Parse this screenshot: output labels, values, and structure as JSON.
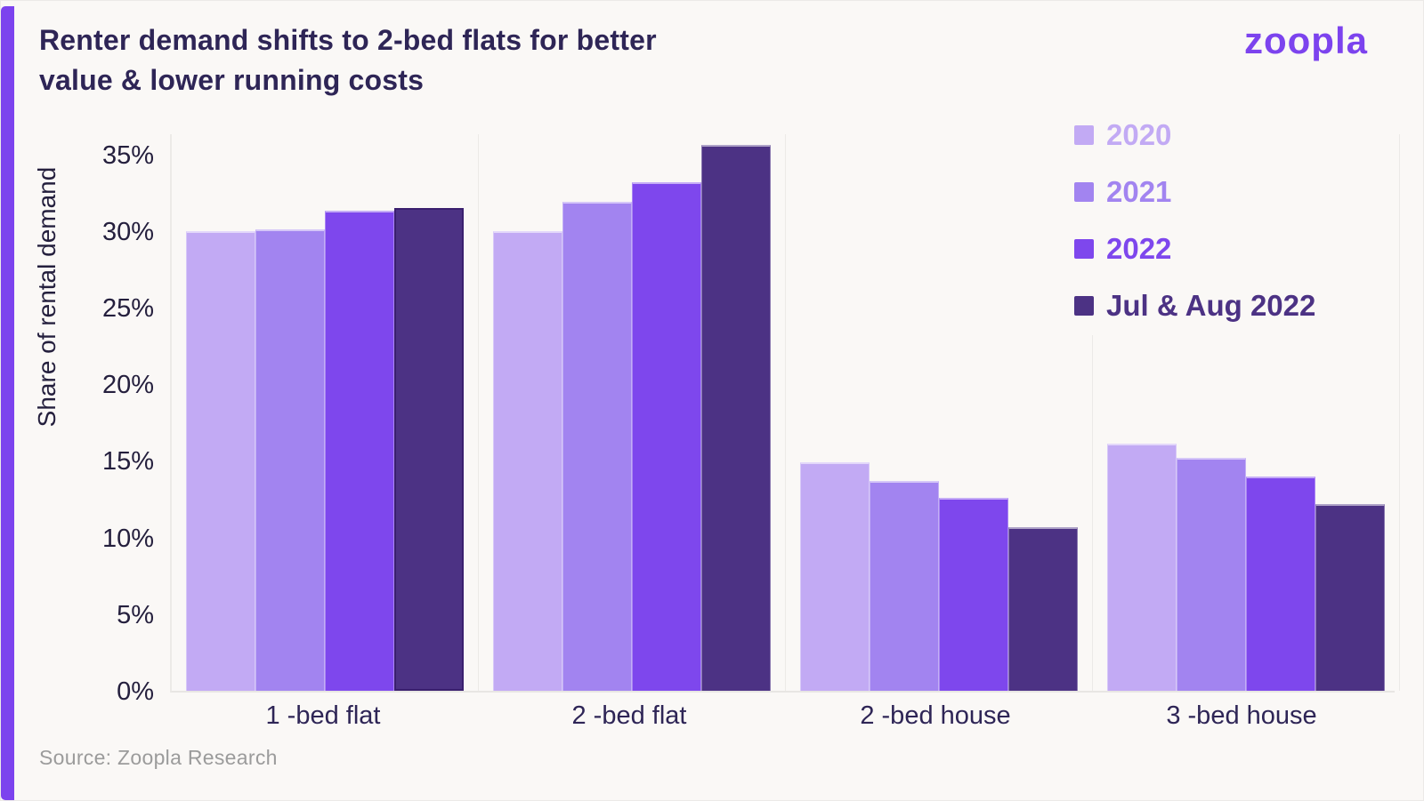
{
  "page": {
    "background_color": "#FAF8F6",
    "accent_color": "#7C43EE"
  },
  "header": {
    "title_lines": [
      "Renter demand shifts to 2-bed flats for better",
      "value & lower running costs"
    ],
    "logo_text": "zoopla"
  },
  "source": {
    "label": "Source: Zoopla Research"
  },
  "chart_data": {
    "type": "bar",
    "title": "Renter demand shifts to 2-bed flats for better value & lower running costs",
    "xlabel": "",
    "ylabel": "Share of rental demand",
    "ylim": [
      0,
      35
    ],
    "yticks": [
      "0%",
      "5%",
      "10%",
      "15%",
      "20%",
      "25%",
      "30%",
      "35%"
    ],
    "grid": false,
    "legend_position": "top-right",
    "categories": [
      "1 -bed flat",
      "2 -bed flat",
      "2 -bed house",
      "3 -bed house"
    ],
    "series": [
      {
        "name": "2020",
        "color": "#C2AAF4",
        "values": [
          30.0,
          30.0,
          14.9,
          16.1
        ]
      },
      {
        "name": "2021",
        "color": "#A284F0",
        "values": [
          30.1,
          31.9,
          13.7,
          15.2
        ]
      },
      {
        "name": "2022",
        "color": "#7E47ED",
        "values": [
          31.3,
          33.2,
          12.6,
          14.0
        ]
      },
      {
        "name": "Jul & Aug 2022",
        "color": "#4C3284",
        "values": [
          31.5,
          35.6,
          10.7,
          12.2
        ]
      }
    ]
  }
}
